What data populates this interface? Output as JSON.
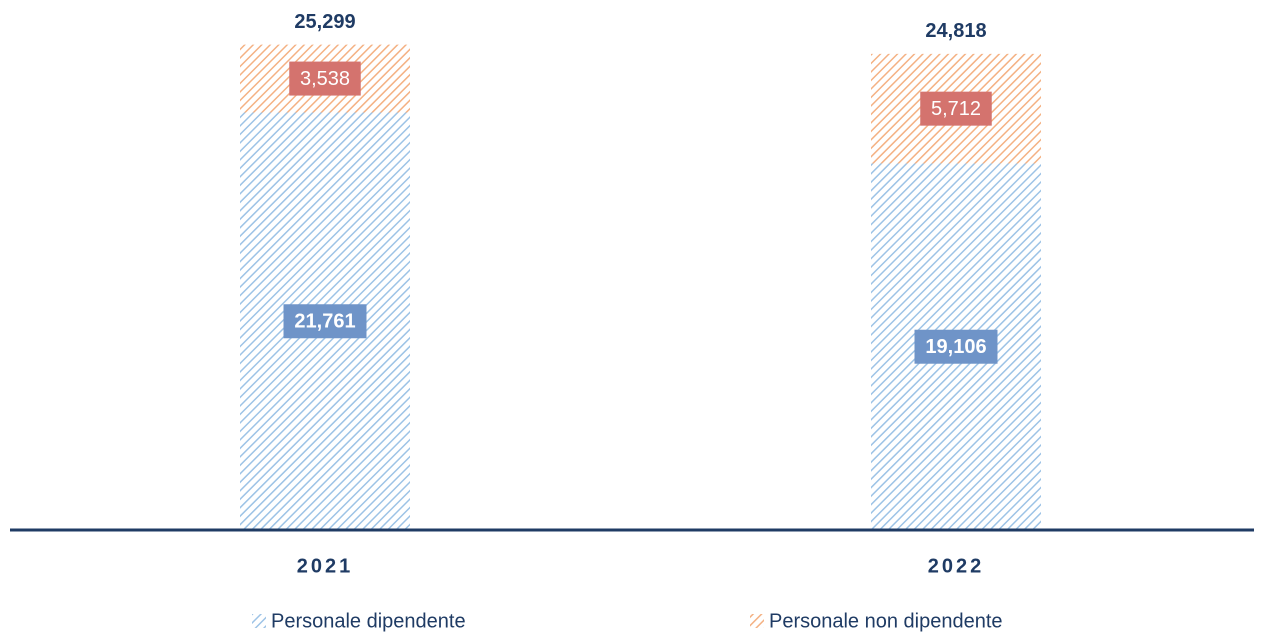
{
  "chart_data": {
    "type": "stacked_bar",
    "categories": [
      "2021",
      "2022"
    ],
    "series": [
      {
        "name": "Personale dipendente",
        "color": "#9dc3e6",
        "label_color": "#6f94c8",
        "values": [
          21761,
          19106
        ],
        "value_labels": [
          "21,761",
          "19,106"
        ]
      },
      {
        "name": "Personale non dipendente",
        "color": "#f4b183",
        "label_color": "#d4736e",
        "values": [
          3538,
          5712
        ],
        "value_labels": [
          "3,538",
          "5,712"
        ]
      }
    ],
    "totals": {
      "values": [
        25299,
        24818
      ],
      "value_labels": [
        "25,299",
        "24,818"
      ]
    },
    "ylim": [
      0,
      27000
    ],
    "legend": "bottom"
  }
}
